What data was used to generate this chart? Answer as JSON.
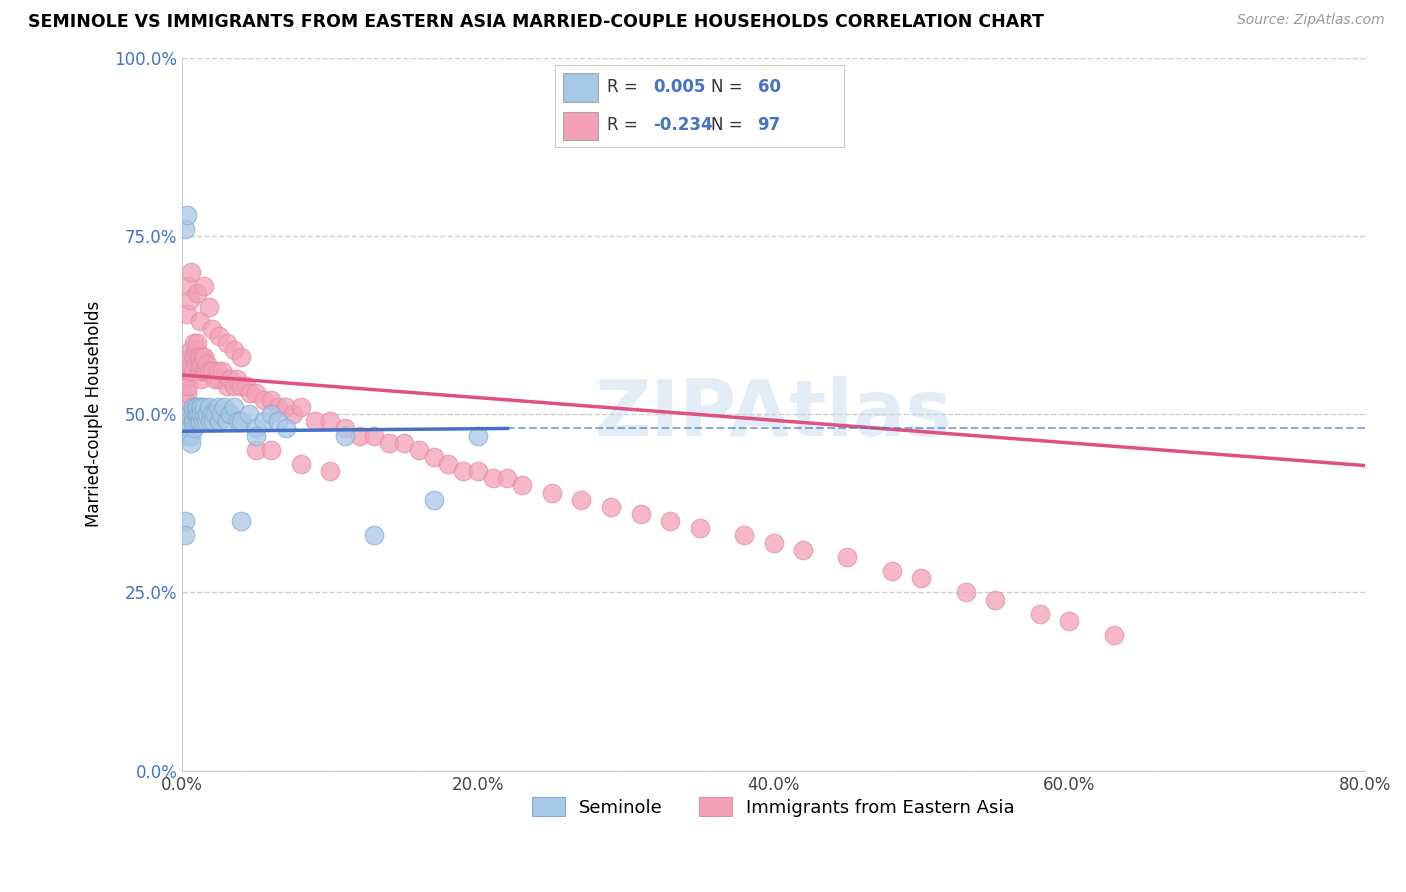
{
  "title": "SEMINOLE VS IMMIGRANTS FROM EASTERN ASIA MARRIED-COUPLE HOUSEHOLDS CORRELATION CHART",
  "source": "Source: ZipAtlas.com",
  "ylabel": "Married-couple Households",
  "legend_labels": [
    "Seminole",
    "Immigrants from Eastern Asia"
  ],
  "r_values": [
    0.005,
    -0.234
  ],
  "n_values": [
    60,
    97
  ],
  "colors_scatter_blue": "#a8c8e8",
  "colors_scatter_pink": "#f4a0b8",
  "color_line_blue": "#4472c4",
  "color_line_pink": "#e05080",
  "xlim": [
    0.0,
    0.8
  ],
  "ylim": [
    0.0,
    1.0
  ],
  "x_ticks": [
    0.0,
    0.2,
    0.4,
    0.6,
    0.8
  ],
  "y_ticks": [
    0.0,
    0.25,
    0.5,
    0.75,
    1.0
  ],
  "x_tick_labels": [
    "0.0%",
    "20.0%",
    "40.0%",
    "60.0%",
    "80.0%"
  ],
  "y_tick_labels": [
    "0.0%",
    "25.0%",
    "50.0%",
    "75.0%",
    "100.0%"
  ],
  "watermark": "ZIPAtlas",
  "blue_trend_x": [
    0.0,
    0.22
  ],
  "blue_trend_y": [
    0.476,
    0.48
  ],
  "pink_trend_x": [
    0.0,
    0.8
  ],
  "pink_trend_y": [
    0.555,
    0.428
  ],
  "seminole_x": [
    0.002,
    0.003,
    0.003,
    0.004,
    0.004,
    0.005,
    0.005,
    0.006,
    0.006,
    0.007,
    0.007,
    0.007,
    0.008,
    0.008,
    0.009,
    0.009,
    0.01,
    0.01,
    0.01,
    0.011,
    0.011,
    0.012,
    0.012,
    0.013,
    0.013,
    0.014,
    0.015,
    0.015,
    0.016,
    0.017,
    0.018,
    0.019,
    0.02,
    0.021,
    0.022,
    0.024,
    0.025,
    0.026,
    0.028,
    0.03,
    0.032,
    0.035,
    0.038,
    0.04,
    0.045,
    0.05,
    0.055,
    0.06,
    0.065,
    0.07,
    0.002,
    0.003,
    0.05,
    0.11,
    0.17,
    0.2,
    0.002,
    0.002,
    0.04,
    0.13
  ],
  "seminole_y": [
    0.48,
    0.49,
    0.5,
    0.47,
    0.49,
    0.5,
    0.48,
    0.47,
    0.46,
    0.49,
    0.5,
    0.51,
    0.48,
    0.49,
    0.5,
    0.51,
    0.49,
    0.5,
    0.51,
    0.49,
    0.5,
    0.51,
    0.49,
    0.51,
    0.5,
    0.49,
    0.5,
    0.51,
    0.49,
    0.5,
    0.51,
    0.49,
    0.5,
    0.49,
    0.5,
    0.51,
    0.49,
    0.5,
    0.51,
    0.49,
    0.5,
    0.51,
    0.49,
    0.49,
    0.5,
    0.48,
    0.49,
    0.5,
    0.49,
    0.48,
    0.76,
    0.78,
    0.47,
    0.47,
    0.38,
    0.47,
    0.35,
    0.33,
    0.35,
    0.33
  ],
  "eastern_x": [
    0.002,
    0.003,
    0.003,
    0.004,
    0.004,
    0.005,
    0.005,
    0.006,
    0.006,
    0.007,
    0.007,
    0.008,
    0.008,
    0.009,
    0.009,
    0.01,
    0.01,
    0.011,
    0.011,
    0.012,
    0.012,
    0.013,
    0.013,
    0.014,
    0.015,
    0.015,
    0.016,
    0.017,
    0.018,
    0.02,
    0.022,
    0.024,
    0.025,
    0.027,
    0.03,
    0.032,
    0.035,
    0.037,
    0.04,
    0.043,
    0.046,
    0.05,
    0.055,
    0.06,
    0.065,
    0.07,
    0.075,
    0.08,
    0.09,
    0.1,
    0.11,
    0.12,
    0.13,
    0.14,
    0.15,
    0.16,
    0.17,
    0.18,
    0.19,
    0.2,
    0.21,
    0.22,
    0.23,
    0.25,
    0.27,
    0.29,
    0.31,
    0.33,
    0.35,
    0.38,
    0.4,
    0.42,
    0.45,
    0.48,
    0.5,
    0.53,
    0.55,
    0.58,
    0.6,
    0.63,
    0.003,
    0.004,
    0.005,
    0.006,
    0.01,
    0.012,
    0.015,
    0.018,
    0.02,
    0.025,
    0.03,
    0.035,
    0.04,
    0.05,
    0.06,
    0.08,
    0.1
  ],
  "eastern_y": [
    0.52,
    0.55,
    0.53,
    0.56,
    0.54,
    0.58,
    0.56,
    0.59,
    0.57,
    0.58,
    0.56,
    0.6,
    0.58,
    0.59,
    0.57,
    0.6,
    0.58,
    0.58,
    0.56,
    0.58,
    0.56,
    0.57,
    0.55,
    0.58,
    0.56,
    0.58,
    0.56,
    0.57,
    0.56,
    0.56,
    0.55,
    0.56,
    0.55,
    0.56,
    0.54,
    0.55,
    0.54,
    0.55,
    0.54,
    0.54,
    0.53,
    0.53,
    0.52,
    0.52,
    0.51,
    0.51,
    0.5,
    0.51,
    0.49,
    0.49,
    0.48,
    0.47,
    0.47,
    0.46,
    0.46,
    0.45,
    0.44,
    0.43,
    0.42,
    0.42,
    0.41,
    0.41,
    0.4,
    0.39,
    0.38,
    0.37,
    0.36,
    0.35,
    0.34,
    0.33,
    0.32,
    0.31,
    0.3,
    0.28,
    0.27,
    0.25,
    0.24,
    0.22,
    0.21,
    0.19,
    0.64,
    0.68,
    0.66,
    0.7,
    0.67,
    0.63,
    0.68,
    0.65,
    0.62,
    0.61,
    0.6,
    0.59,
    0.58,
    0.45,
    0.45,
    0.43,
    0.42
  ]
}
